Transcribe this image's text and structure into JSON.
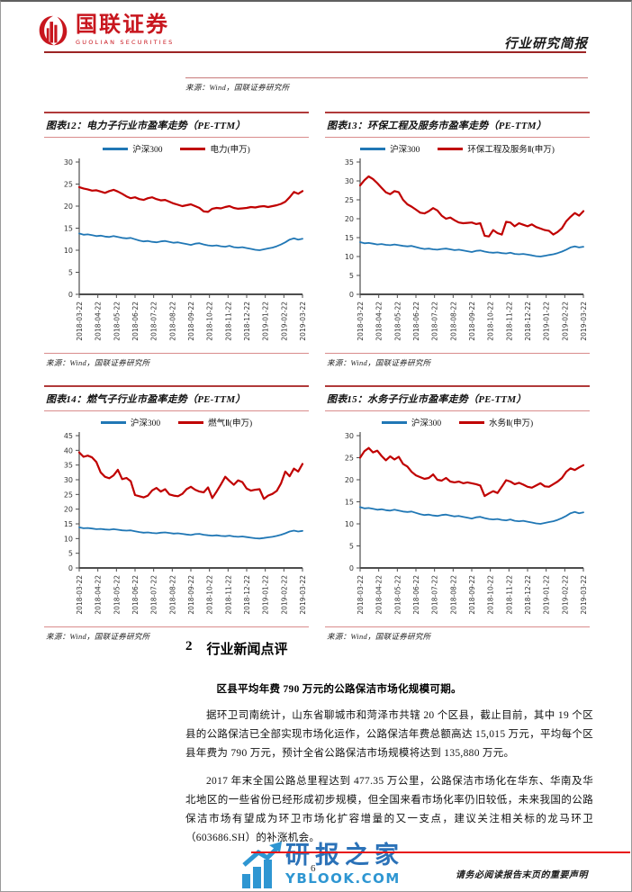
{
  "header": {
    "brand_cn": "国联证券",
    "brand_en": "GUOLIAN SECURITIES",
    "doc_type": "行业研究简报"
  },
  "captions": {
    "top_source": "来源：Wind，国联证券研究所"
  },
  "colors": {
    "csi300_blue": "#2077B5",
    "industry_red": "#C00000",
    "brand_red": "#C8161E",
    "rule_dark_red": "#B03A3A",
    "rule_pink": "#D98C8C",
    "footer_line_red": "#E81414",
    "watermark_blue": "#2E96D2"
  },
  "chart_data": [
    {
      "type": "line",
      "title": "图表12：电力子行业市盈率走势（PE-TTM）",
      "source": "来源：Wind，国联证券研究所",
      "ylim": [
        0,
        30
      ],
      "ytick": 5,
      "grid": false,
      "legend_position": "top-center",
      "x": [
        "2018-03-22",
        "2018-04-22",
        "2018-05-22",
        "2018-06-22",
        "2018-07-22",
        "2018-08-22",
        "2018-09-22",
        "2018-10-22",
        "2018-11-22",
        "2018-12-22",
        "2019-01-22",
        "2019-02-22",
        "2019-03-22"
      ],
      "series": [
        {
          "name": "沪深300",
          "color": "#2077B5",
          "values": [
            13.8,
            13.5,
            13.6,
            13.4,
            13.2,
            13.3,
            13.1,
            13.0,
            13.2,
            13.0,
            12.8,
            12.7,
            12.8,
            12.5,
            12.2,
            12.0,
            12.1,
            11.9,
            11.8,
            12.0,
            12.1,
            11.9,
            11.7,
            11.8,
            11.6,
            11.4,
            11.2,
            11.5,
            11.6,
            11.3,
            11.1,
            11.0,
            11.1,
            10.9,
            10.8,
            11.0,
            10.7,
            10.6,
            10.7,
            10.5,
            10.3,
            10.1,
            10.0,
            10.2,
            10.4,
            10.6,
            10.9,
            11.3,
            11.8,
            12.4,
            12.7,
            12.4,
            12.6
          ]
        },
        {
          "name": "电力(申万)",
          "color": "#C00000",
          "values": [
            24.3,
            24.0,
            23.8,
            23.5,
            23.6,
            23.3,
            23.0,
            23.4,
            23.7,
            23.3,
            22.8,
            22.2,
            21.8,
            22.0,
            21.6,
            21.4,
            21.8,
            22.0,
            21.6,
            21.3,
            21.4,
            21.0,
            20.6,
            20.3,
            20.0,
            20.2,
            20.4,
            20.0,
            19.6,
            18.8,
            18.7,
            19.4,
            19.6,
            19.5,
            19.8,
            20.0,
            19.6,
            19.4,
            19.5,
            19.6,
            19.8,
            19.7,
            19.9,
            20.0,
            19.8,
            20.0,
            20.2,
            20.5,
            21.0,
            22.0,
            23.2,
            22.8,
            23.4
          ]
        }
      ]
    },
    {
      "type": "line",
      "title": "图表13：环保工程及服务市盈率走势（PE-TTM）",
      "source": "来源：Wind，国联证券研究所",
      "ylim": [
        0,
        35
      ],
      "ytick": 5,
      "grid": false,
      "legend_position": "top-center",
      "x": [
        "2018-03-22",
        "2018-04-22",
        "2018-05-22",
        "2018-06-22",
        "2018-07-22",
        "2018-08-22",
        "2018-09-22",
        "2018-10-22",
        "2018-11-22",
        "2018-12-22",
        "2019-01-22",
        "2019-02-22",
        "2019-03-22"
      ],
      "series": [
        {
          "name": "沪深300",
          "color": "#2077B5",
          "values": [
            13.8,
            13.5,
            13.6,
            13.4,
            13.2,
            13.3,
            13.1,
            13.0,
            13.2,
            13.0,
            12.8,
            12.7,
            12.8,
            12.5,
            12.2,
            12.0,
            12.1,
            11.9,
            11.8,
            12.0,
            12.1,
            11.9,
            11.7,
            11.8,
            11.6,
            11.4,
            11.2,
            11.5,
            11.6,
            11.3,
            11.1,
            11.0,
            11.1,
            10.9,
            10.8,
            11.0,
            10.7,
            10.6,
            10.7,
            10.5,
            10.3,
            10.1,
            10.0,
            10.2,
            10.4,
            10.6,
            10.9,
            11.3,
            11.8,
            12.4,
            12.7,
            12.4,
            12.6
          ]
        },
        {
          "name": "环保工程及服务Ⅱ(申万)",
          "color": "#C00000",
          "values": [
            28.8,
            30.2,
            31.2,
            30.5,
            29.4,
            28.2,
            27.0,
            26.5,
            27.3,
            27.0,
            25.0,
            23.8,
            23.2,
            22.4,
            21.6,
            21.4,
            22.0,
            22.8,
            22.2,
            20.8,
            20.0,
            20.3,
            19.6,
            19.0,
            18.8,
            18.9,
            19.0,
            18.6,
            18.8,
            15.5,
            15.3,
            17.0,
            16.2,
            15.8,
            19.2,
            19.0,
            18.0,
            18.8,
            18.4,
            18.0,
            18.5,
            17.8,
            17.4,
            17.0,
            16.8,
            15.8,
            16.5,
            17.5,
            19.3,
            20.5,
            21.5,
            20.8,
            22.0
          ]
        }
      ]
    },
    {
      "type": "line",
      "title": "图表14：燃气子行业市盈率走势（PE-TTM）",
      "source": "来源：Wind，国联证券研究所",
      "ylim": [
        0,
        45
      ],
      "ytick": 5,
      "grid": false,
      "legend_position": "top-center",
      "x": [
        "2018-03-22",
        "2018-04-22",
        "2018-05-22",
        "2018-06-22",
        "2018-07-22",
        "2018-08-22",
        "2018-09-22",
        "2018-10-22",
        "2018-11-22",
        "2018-12-22",
        "2019-01-22",
        "2019-02-22",
        "2019-03-22"
      ],
      "series": [
        {
          "name": "沪深300",
          "color": "#2077B5",
          "values": [
            13.8,
            13.5,
            13.6,
            13.4,
            13.2,
            13.3,
            13.1,
            13.0,
            13.2,
            13.0,
            12.8,
            12.7,
            12.8,
            12.5,
            12.2,
            12.0,
            12.1,
            11.9,
            11.8,
            12.0,
            12.1,
            11.9,
            11.7,
            11.8,
            11.6,
            11.4,
            11.2,
            11.5,
            11.6,
            11.3,
            11.1,
            11.0,
            11.1,
            10.9,
            10.8,
            11.0,
            10.7,
            10.6,
            10.7,
            10.5,
            10.3,
            10.1,
            10.0,
            10.2,
            10.4,
            10.6,
            10.9,
            11.3,
            11.8,
            12.4,
            12.7,
            12.4,
            12.6
          ]
        },
        {
          "name": "燃气Ⅱ(申万)",
          "color": "#C00000",
          "values": [
            39.3,
            37.8,
            38.2,
            37.6,
            36.0,
            32.5,
            31.0,
            30.5,
            31.5,
            33.4,
            30.2,
            30.6,
            29.5,
            24.8,
            24.4,
            24.0,
            24.6,
            26.4,
            27.2,
            26.0,
            26.8,
            25.0,
            24.6,
            24.4,
            25.2,
            26.8,
            27.6,
            26.6,
            26.0,
            25.7,
            27.4,
            23.8,
            26.0,
            28.4,
            31.0,
            29.6,
            28.3,
            29.8,
            29.2,
            27.0,
            26.3,
            26.6,
            26.8,
            23.5,
            24.6,
            25.2,
            26.2,
            28.8,
            32.8,
            31.2,
            33.8,
            32.8,
            35.4
          ]
        }
      ]
    },
    {
      "type": "line",
      "title": "图表15：水务子行业市盈率走势（PE-TTM）",
      "source": "来源：Wind，国联证券研究所",
      "ylim": [
        0,
        30
      ],
      "ytick": 5,
      "grid": false,
      "legend_position": "top-center",
      "x": [
        "2018-03-22",
        "2018-04-22",
        "2018-05-22",
        "2018-06-22",
        "2018-07-22",
        "2018-08-22",
        "2018-09-22",
        "2018-10-22",
        "2018-11-22",
        "2018-12-22",
        "2019-01-22",
        "2019-02-22",
        "2019-03-22"
      ],
      "series": [
        {
          "name": "沪深300",
          "color": "#2077B5",
          "values": [
            13.8,
            13.5,
            13.6,
            13.4,
            13.2,
            13.3,
            13.1,
            13.0,
            13.2,
            13.0,
            12.8,
            12.7,
            12.8,
            12.5,
            12.2,
            12.0,
            12.1,
            11.9,
            11.8,
            12.0,
            12.1,
            11.9,
            11.7,
            11.8,
            11.6,
            11.4,
            11.2,
            11.5,
            11.6,
            11.3,
            11.1,
            11.0,
            11.1,
            10.9,
            10.8,
            11.0,
            10.7,
            10.6,
            10.7,
            10.5,
            10.3,
            10.1,
            10.0,
            10.2,
            10.4,
            10.6,
            10.9,
            11.3,
            11.8,
            12.4,
            12.7,
            12.4,
            12.6
          ]
        },
        {
          "name": "水务Ⅱ(申万)",
          "color": "#C00000",
          "values": [
            25.0,
            26.5,
            27.2,
            26.2,
            26.6,
            25.4,
            24.4,
            25.3,
            24.6,
            25.2,
            23.6,
            23.0,
            21.8,
            21.0,
            20.6,
            20.2,
            20.4,
            21.2,
            20.0,
            19.8,
            20.4,
            19.6,
            19.4,
            19.6,
            19.2,
            19.4,
            19.2,
            19.0,
            18.7,
            16.3,
            16.9,
            17.4,
            17.0,
            18.4,
            19.9,
            19.6,
            19.0,
            19.3,
            18.9,
            18.4,
            18.2,
            18.7,
            19.2,
            18.5,
            18.4,
            19.0,
            19.6,
            20.4,
            21.8,
            22.6,
            22.2,
            22.8,
            23.3
          ]
        }
      ]
    }
  ],
  "section": {
    "number": "2",
    "title": "行业新闻点评",
    "lead": "区县平均年费 790 万元的公路保洁市场化规模可期。",
    "paragraphs": [
      "据环卫司南统计，山东省聊城市和菏泽市共辖 20 个区县，截止目前，其中 19 个区县的公路保洁已全部实现市场化运作，公路保洁年费总额高达 15,015 万元，平均每个区县年费为 790 万元，预计全省公路保洁市场规模将达到 135,880 万元。",
      "2017 年末全国公路总里程达到 477.35 万公里，公路保洁市场化在华东、华南及华北地区的一些省份已经形成初步规模，但全国来看市场化率仍旧较低，未来我国的公路保洁市场有望成为环卫市场化扩容增量的又一支点，建议关注相关标的龙马环卫（603686.SH）的补涨机会。"
    ]
  },
  "footer": {
    "watermark_cn": "研报之家",
    "watermark_en": "YBLOOK.COM",
    "page_number": "6",
    "disclaimer": "请务必阅读报告末页的重要声明"
  }
}
